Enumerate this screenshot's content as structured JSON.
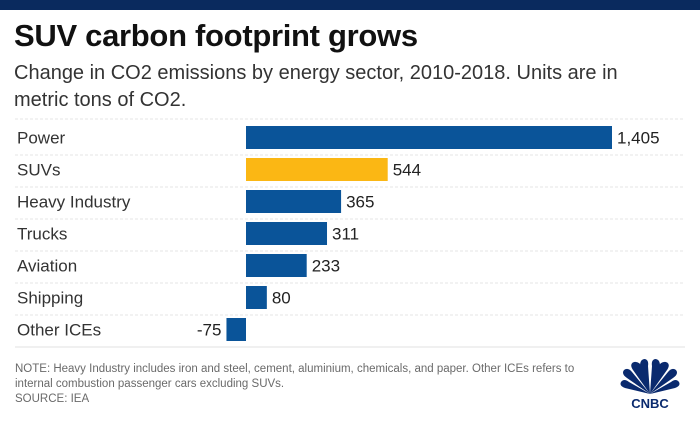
{
  "header": {
    "title": "SUV carbon footprint grows",
    "subtitle": "Change in CO2 emissions by energy sector, 2010-2018. Units are in metric tons of CO2."
  },
  "footer": {
    "note": "NOTE: Heavy Industry includes iron and steel, cement, aluminium, chemicals, and paper. Other ICEs refers to internal combustion passenger cars excluding SUVs.",
    "source": "SOURCE: IEA",
    "logo_text": "CNBC"
  },
  "colors": {
    "bar_default": "#0a5499",
    "bar_highlight": "#fbb714",
    "topbar": "#0a2a5e",
    "logo": "#0a2a6e"
  },
  "chart_data": {
    "type": "bar",
    "orientation": "horizontal",
    "title": "SUV carbon footprint grows",
    "subtitle": "Change in CO2 emissions by energy sector, 2010-2018. Units are in metric tons of CO2.",
    "xlabel": "",
    "ylabel": "",
    "categories": [
      "Power",
      "SUVs",
      "Heavy Industry",
      "Trucks",
      "Aviation",
      "Shipping",
      "Other ICEs"
    ],
    "values": [
      1405,
      544,
      365,
      311,
      233,
      80,
      -75
    ],
    "value_labels": [
      "1,405",
      "544",
      "365",
      "311",
      "233",
      "80",
      "-75"
    ],
    "highlight": "SUVs",
    "xlim": [
      -75,
      1405
    ],
    "grid": false,
    "row_separators": "dashed",
    "legend": "none"
  }
}
